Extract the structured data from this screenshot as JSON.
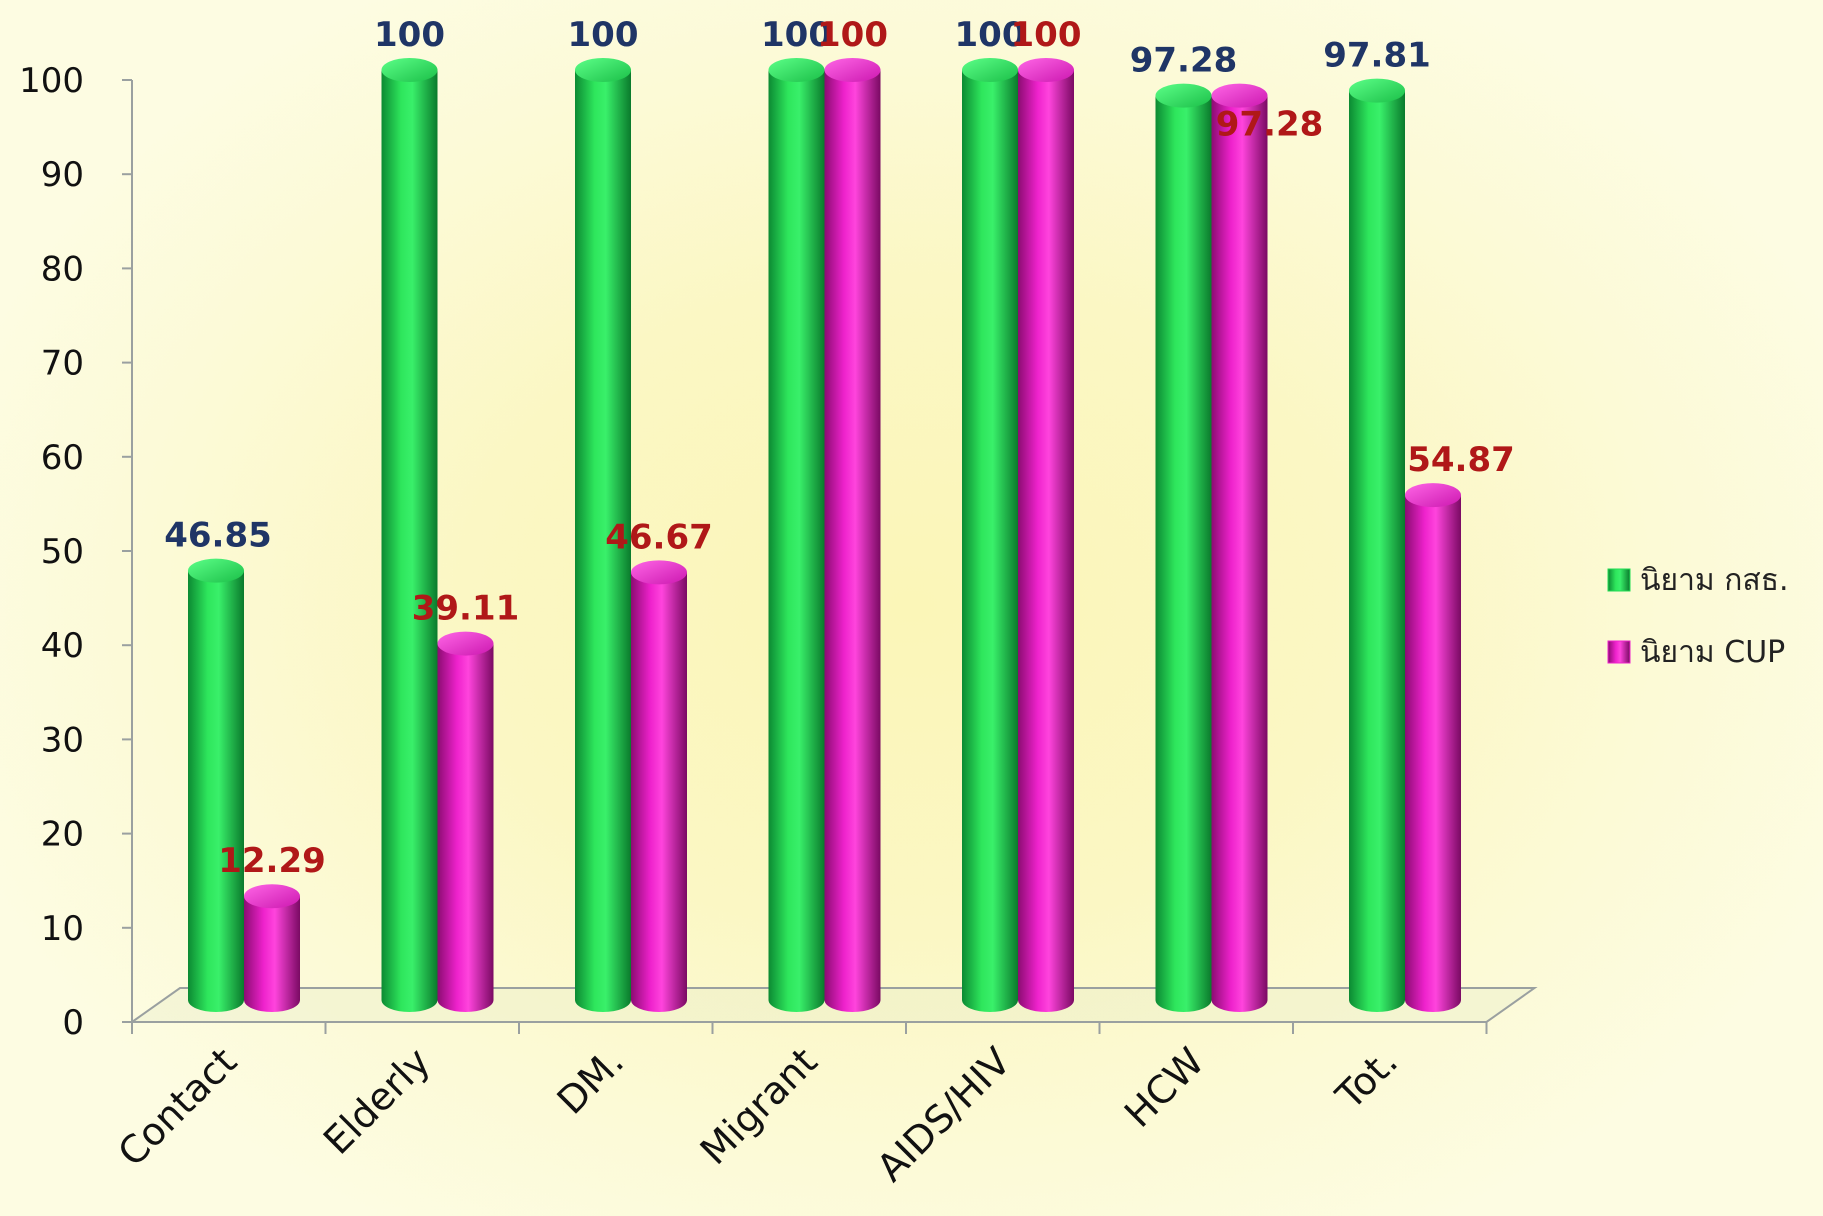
{
  "chart_data": {
    "type": "bar",
    "title": "",
    "xlabel": "",
    "ylabel": "",
    "ylim": [
      0,
      100
    ],
    "yticks": [
      "0",
      "10",
      "20",
      "30",
      "40",
      "50",
      "60",
      "70",
      "80",
      "90",
      "100"
    ],
    "categories": [
      "Contact",
      "Elderly",
      "DM.",
      "Migrant",
      "AIDS/HIV",
      "HCW",
      "Tot."
    ],
    "series": [
      {
        "name": "นิยาม กสธ.",
        "values": [
          46.85,
          100,
          100,
          100,
          100,
          97.28,
          97.81
        ],
        "labels": [
          "46.85",
          "100",
          "100",
          "100",
          "100",
          "97.28",
          "97.81"
        ],
        "color": "#22dd55",
        "label_color": "#1f3566"
      },
      {
        "name": "นิยาม CUP",
        "values": [
          12.29,
          39.11,
          46.67,
          100,
          100,
          97.28,
          54.87
        ],
        "labels": [
          "12.29",
          "39.11",
          "46.67",
          "100",
          "100",
          "97.28",
          "54.87"
        ],
        "color": "#ee22cc",
        "label_color": "#b01818"
      }
    ],
    "legend_position": "right",
    "grid": false,
    "style": "3d-cylinder"
  }
}
